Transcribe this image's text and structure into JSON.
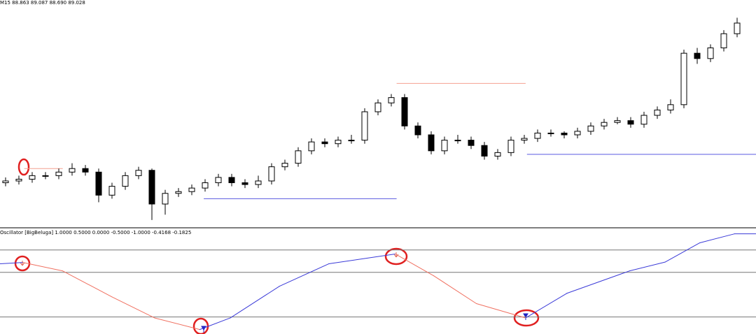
{
  "chart_data": [
    {
      "type": "candlestick",
      "title": "M15 88.863 89.087 88.690 89.028",
      "xlim": [
        -0.42,
        56.42
      ],
      "ylim": [
        87.88,
        89.16
      ],
      "up_color": "#ffffff",
      "down_color": "#000000",
      "open": [
        88.13,
        88.14,
        88.15,
        88.17,
        88.17,
        88.19,
        88.21,
        88.19,
        88.06,
        88.11,
        88.17,
        88.2,
        88.01,
        88.07,
        88.08,
        88.1,
        88.13,
        88.16,
        88.13,
        88.12,
        88.14,
        88.22,
        88.24,
        88.31,
        88.36,
        88.35,
        88.37,
        88.37,
        88.53,
        88.58,
        88.61,
        88.45,
        88.4,
        88.31,
        88.37,
        88.37,
        88.34,
        88.28,
        88.3,
        88.37,
        88.38,
        88.41,
        88.41,
        88.4,
        88.42,
        88.45,
        88.47,
        88.48,
        88.46,
        88.51,
        88.54,
        88.57,
        88.86,
        88.83,
        88.89,
        88.97
      ],
      "high": [
        88.16,
        88.17,
        88.19,
        88.19,
        88.21,
        88.24,
        88.23,
        88.21,
        88.13,
        88.19,
        88.22,
        88.21,
        88.09,
        88.1,
        88.12,
        88.15,
        88.18,
        88.18,
        88.15,
        88.17,
        88.24,
        88.26,
        88.33,
        88.38,
        88.38,
        88.39,
        88.4,
        88.55,
        88.6,
        88.63,
        88.63,
        88.47,
        88.42,
        88.39,
        88.4,
        88.39,
        88.36,
        88.32,
        88.39,
        88.4,
        88.43,
        88.43,
        88.42,
        88.44,
        88.47,
        88.49,
        88.5,
        88.5,
        88.53,
        88.56,
        88.6,
        88.88,
        88.89,
        88.91,
        88.99,
        89.06
      ],
      "low": [
        88.11,
        88.12,
        88.13,
        88.15,
        88.15,
        88.17,
        88.17,
        88.02,
        88.04,
        88.09,
        88.15,
        87.92,
        87.95,
        88.05,
        88.06,
        88.08,
        88.11,
        88.11,
        88.1,
        88.1,
        88.12,
        88.2,
        88.22,
        88.29,
        88.33,
        88.33,
        88.35,
        88.35,
        88.51,
        88.56,
        88.43,
        88.38,
        88.29,
        88.29,
        88.35,
        88.32,
        88.26,
        88.26,
        88.28,
        88.35,
        88.36,
        88.39,
        88.38,
        88.38,
        88.4,
        88.43,
        88.46,
        88.44,
        88.44,
        88.49,
        88.52,
        88.55,
        88.8,
        88.81,
        88.87,
        88.95
      ],
      "close": [
        88.14,
        88.15,
        88.17,
        88.17,
        88.19,
        88.21,
        88.19,
        88.06,
        88.11,
        88.17,
        88.2,
        88.01,
        88.07,
        88.08,
        88.1,
        88.13,
        88.16,
        88.13,
        88.12,
        88.14,
        88.22,
        88.24,
        88.31,
        88.36,
        88.35,
        88.37,
        88.37,
        88.53,
        88.58,
        88.61,
        88.45,
        88.4,
        88.31,
        88.37,
        88.37,
        88.34,
        88.28,
        88.3,
        88.37,
        88.38,
        88.41,
        88.41,
        88.4,
        88.42,
        88.45,
        88.47,
        88.48,
        88.46,
        88.51,
        88.54,
        88.57,
        88.86,
        88.83,
        88.89,
        88.97,
        89.03
      ],
      "levels": [
        {
          "value": 88.21,
          "start": 1.4,
          "end": 4.3,
          "color": "#f4a090"
        },
        {
          "value": 88.04,
          "start": 14.9,
          "end": 29.4,
          "color": "#5a5ae0"
        },
        {
          "value": 88.69,
          "start": 29.4,
          "end": 39.1,
          "color": "#f4a090"
        },
        {
          "value": 88.29,
          "start": 39.2,
          "end": 56.42,
          "color": "#5a5ae0"
        }
      ]
    },
    {
      "type": "line",
      "title": "Oscillator [BigBeluga] 1.0000 0.5000 0.0000 -0.5000 -1.0000 -0.4168 -0.1825",
      "xlim": [
        -0.42,
        56.42
      ],
      "ylim": [
        -0.88,
        1.48
      ],
      "up_color": "#3a3ad8",
      "down_color": "#f07060",
      "levels": [
        1,
        0.5,
        -0.5
      ],
      "x": [
        -0.4,
        1.3,
        4.3,
        8,
        11.2,
        14.6,
        16.9,
        20.6,
        24.3,
        29.3,
        32.2,
        35.4,
        39.1,
        42.2,
        46.9,
        49.6,
        52.2,
        54.8,
        56.4
      ],
      "values": [
        0.69,
        0.72,
        0.53,
        -0.05,
        -0.52,
        -0.78,
        -0.52,
        0.19,
        0.69,
        0.91,
        0.42,
        -0.2,
        -0.52,
        0.03,
        0.53,
        0.73,
        1.16,
        1.36,
        1.36
      ]
    }
  ]
}
